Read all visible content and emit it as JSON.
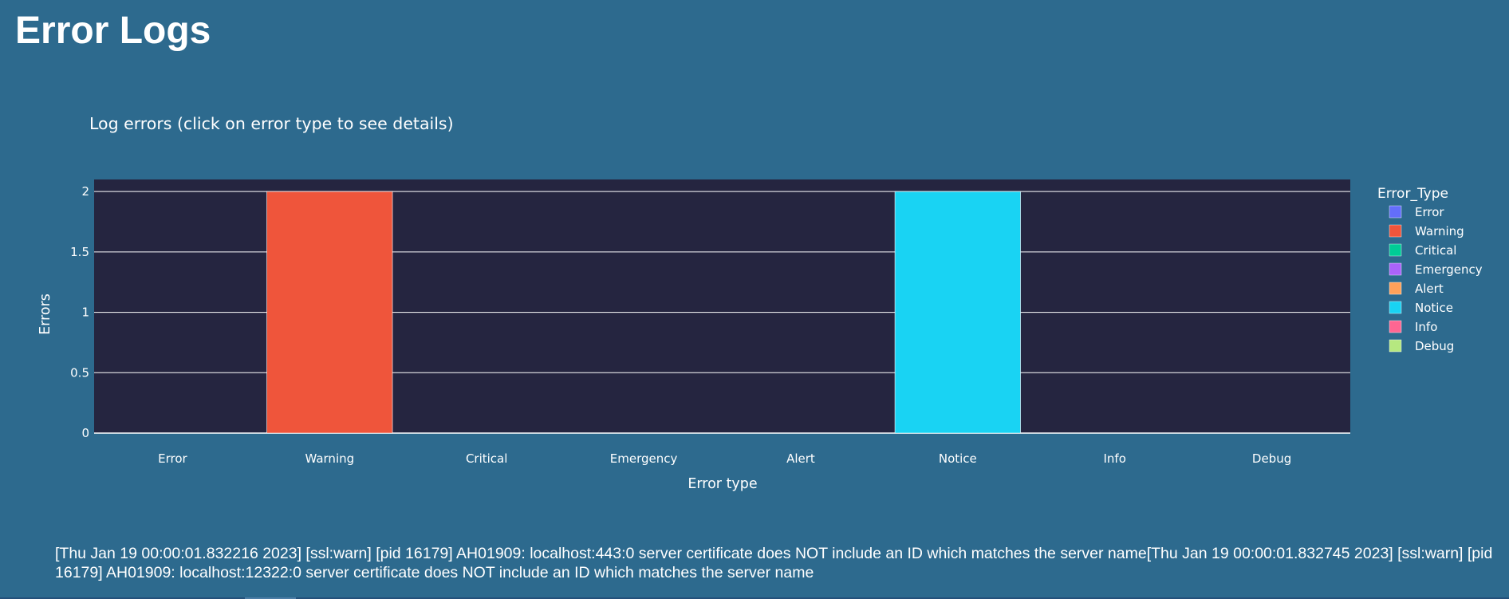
{
  "page": {
    "title": "Error Logs",
    "background": "#2d6a8e"
  },
  "chart_data": {
    "type": "bar",
    "title": "Log errors (click on error type to see details)",
    "xlabel": "Error type",
    "ylabel": "Errors",
    "ylim": [
      0,
      2.1
    ],
    "yticks": [
      0,
      0.5,
      1,
      1.5,
      2
    ],
    "ytick_labels": [
      "0",
      "0.5",
      "1",
      "1.5",
      "2"
    ],
    "grid": true,
    "plot_background": "#252540",
    "categories": [
      "Error",
      "Warning",
      "Critical",
      "Emergency",
      "Alert",
      "Notice",
      "Info",
      "Debug"
    ],
    "series": [
      {
        "name": "Error",
        "color": "#636efa",
        "values": [
          0,
          0,
          0,
          0,
          0,
          0,
          0,
          0
        ]
      },
      {
        "name": "Warning",
        "color": "#ef553b",
        "values": [
          0,
          2,
          0,
          0,
          0,
          0,
          0,
          0
        ]
      },
      {
        "name": "Critical",
        "color": "#00cc96",
        "values": [
          0,
          0,
          0,
          0,
          0,
          0,
          0,
          0
        ]
      },
      {
        "name": "Emergency",
        "color": "#ab63fa",
        "values": [
          0,
          0,
          0,
          0,
          0,
          0,
          0,
          0
        ]
      },
      {
        "name": "Alert",
        "color": "#ffa15a",
        "values": [
          0,
          0,
          0,
          0,
          0,
          0,
          0,
          0
        ]
      },
      {
        "name": "Notice",
        "color": "#19d3f3",
        "values": [
          0,
          0,
          0,
          0,
          0,
          2,
          0,
          0
        ]
      },
      {
        "name": "Info",
        "color": "#ff6692",
        "values": [
          0,
          0,
          0,
          0,
          0,
          0,
          0,
          0
        ]
      },
      {
        "name": "Debug",
        "color": "#b6e880",
        "values": [
          0,
          0,
          0,
          0,
          0,
          0,
          0,
          0
        ]
      }
    ],
    "legend": {
      "title": "Error_Type",
      "placement": "right"
    }
  },
  "log": {
    "text": "[Thu Jan 19 00:00:01.832216 2023] [ssl:warn] [pid 16179] AH01909: localhost:443:0 server certificate does NOT include an ID which matches the server name[Thu Jan 19 00:00:01.832745 2023] [ssl:warn] [pid 16179] AH01909: localhost:12322:0 server certificate does NOT include an ID which matches the server name"
  }
}
